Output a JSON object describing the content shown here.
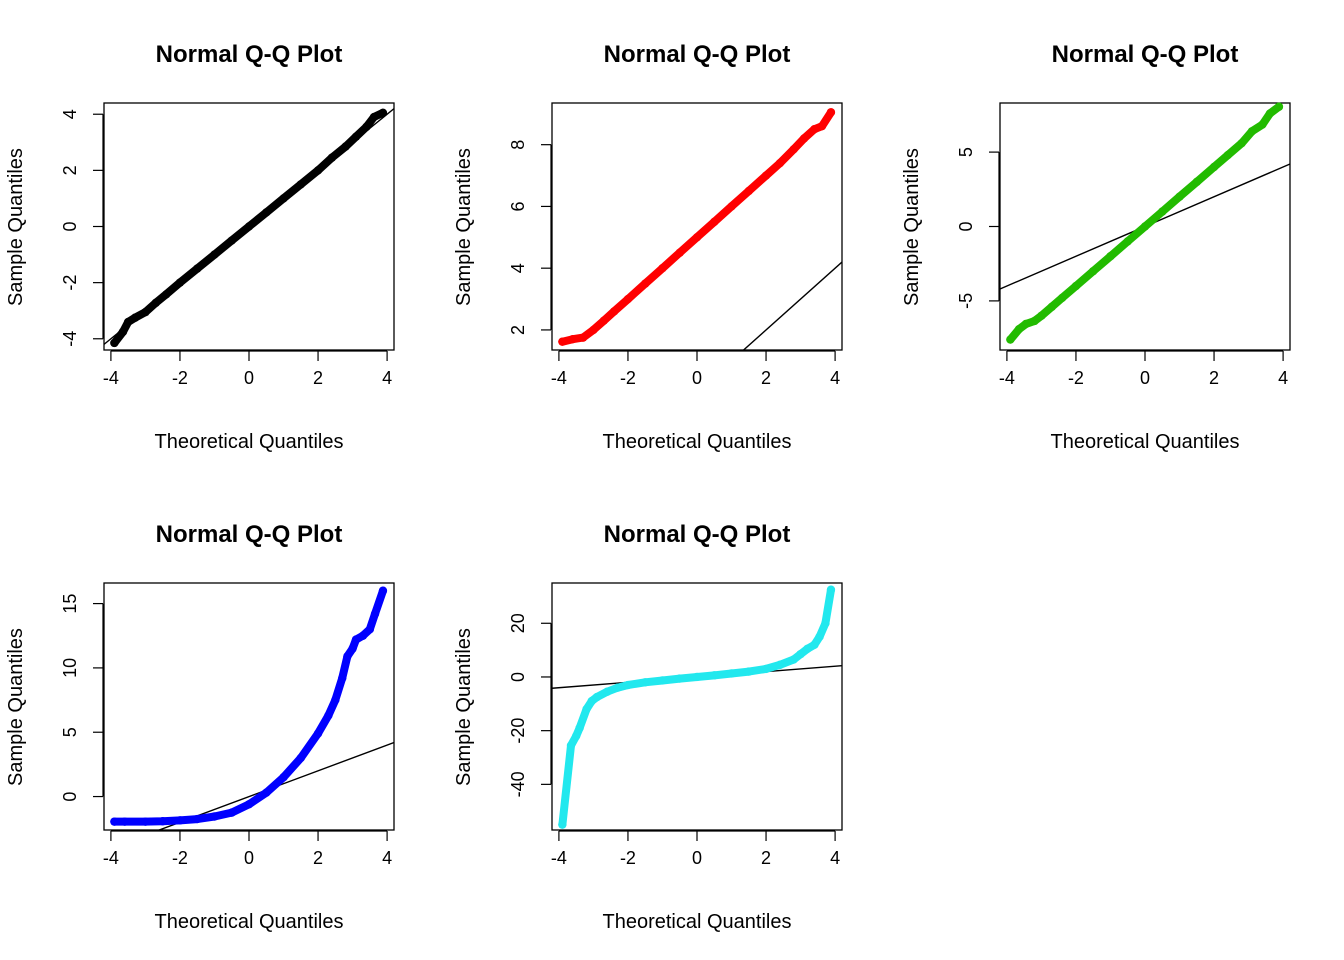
{
  "chart_data": [
    {
      "type": "scatter",
      "title": "Normal Q-Q Plot",
      "xlabel": "Theoretical Quantiles",
      "ylabel": "Sample Quantiles",
      "xlim": [
        -4.2,
        4.2
      ],
      "ylim": [
        -4.4,
        4.4
      ],
      "xticks": [
        "-4",
        "-2",
        "0",
        "2",
        "4"
      ],
      "yticks": [
        "-4",
        "-2",
        "0",
        "2",
        "4"
      ],
      "color": "#000000",
      "distribution": "standard normal",
      "qq_line": {
        "slope": 1.0,
        "intercept": 0.0
      },
      "series": [
        {
          "values": [
            [
              -3.9,
              -4.15
            ],
            [
              -3.65,
              -3.75
            ],
            [
              -3.5,
              -3.4
            ],
            [
              -3.3,
              -3.25
            ],
            [
              -3.0,
              -3.05
            ],
            [
              -2.7,
              -2.72
            ],
            [
              -2.4,
              -2.42
            ],
            [
              -2.0,
              -2.0
            ],
            [
              -1.5,
              -1.5
            ],
            [
              -1.0,
              -1.0
            ],
            [
              -0.5,
              -0.5
            ],
            [
              0.0,
              0.0
            ],
            [
              0.5,
              0.5
            ],
            [
              1.0,
              1.0
            ],
            [
              1.5,
              1.5
            ],
            [
              2.0,
              2.0
            ],
            [
              2.4,
              2.45
            ],
            [
              2.8,
              2.85
            ],
            [
              3.1,
              3.2
            ],
            [
              3.4,
              3.55
            ],
            [
              3.62,
              3.9
            ],
            [
              3.88,
              4.05
            ]
          ]
        }
      ]
    },
    {
      "type": "scatter",
      "title": "Normal Q-Q Plot",
      "xlabel": "Theoretical Quantiles",
      "ylabel": "Sample Quantiles",
      "xlim": [
        -4.2,
        4.2
      ],
      "ylim": [
        1.35,
        9.35
      ],
      "xticks": [
        "-4",
        "-2",
        "0",
        "2",
        "4"
      ],
      "yticks": [
        "2",
        "4",
        "6",
        "8"
      ],
      "color": "#ff0000",
      "distribution": "normal, mean 5",
      "qq_line": {
        "slope": 1.0,
        "intercept": 0.0
      },
      "series": [
        {
          "values": [
            [
              -3.9,
              1.62
            ],
            [
              -3.6,
              1.7
            ],
            [
              -3.3,
              1.75
            ],
            [
              -3.0,
              2.0
            ],
            [
              -2.7,
              2.3
            ],
            [
              -2.4,
              2.6
            ],
            [
              -2.0,
              3.0
            ],
            [
              -1.5,
              3.5
            ],
            [
              -1.0,
              4.0
            ],
            [
              -0.5,
              4.5
            ],
            [
              0.0,
              5.0
            ],
            [
              0.5,
              5.5
            ],
            [
              1.0,
              6.0
            ],
            [
              1.5,
              6.5
            ],
            [
              2.0,
              7.0
            ],
            [
              2.4,
              7.4
            ],
            [
              2.8,
              7.85
            ],
            [
              3.1,
              8.2
            ],
            [
              3.4,
              8.5
            ],
            [
              3.62,
              8.6
            ],
            [
              3.88,
              9.05
            ]
          ]
        }
      ]
    },
    {
      "type": "scatter",
      "title": "Normal Q-Q Plot",
      "xlabel": "Theoretical Quantiles",
      "ylabel": "Sample Quantiles",
      "xlim": [
        -4.2,
        4.2
      ],
      "ylim": [
        -8.3,
        8.3
      ],
      "xticks": [
        "-4",
        "-2",
        "0",
        "2",
        "4"
      ],
      "yticks": [
        "-5",
        "0",
        "5"
      ],
      "color": "#22bb00",
      "distribution": "normal, sd 2",
      "qq_line": {
        "slope": 1.0,
        "intercept": 0.0
      },
      "series": [
        {
          "values": [
            [
              -3.9,
              -7.6
            ],
            [
              -3.65,
              -6.9
            ],
            [
              -3.45,
              -6.55
            ],
            [
              -3.2,
              -6.35
            ],
            [
              -3.0,
              -6.0
            ],
            [
              -2.7,
              -5.4
            ],
            [
              -2.4,
              -4.8
            ],
            [
              -2.0,
              -4.0
            ],
            [
              -1.5,
              -3.0
            ],
            [
              -1.0,
              -2.0
            ],
            [
              -0.5,
              -1.0
            ],
            [
              0.0,
              0.0
            ],
            [
              0.5,
              1.0
            ],
            [
              1.0,
              2.0
            ],
            [
              1.5,
              3.0
            ],
            [
              2.0,
              4.0
            ],
            [
              2.4,
              4.8
            ],
            [
              2.8,
              5.6
            ],
            [
              3.1,
              6.4
            ],
            [
              3.4,
              6.85
            ],
            [
              3.62,
              7.6
            ],
            [
              3.88,
              8.05
            ]
          ]
        }
      ]
    },
    {
      "type": "scatter",
      "title": "Normal Q-Q Plot",
      "xlabel": "Theoretical Quantiles",
      "ylabel": "Sample Quantiles",
      "xlim": [
        -4.2,
        4.2
      ],
      "ylim": [
        -2.6,
        16.6
      ],
      "xticks": [
        "-4",
        "-2",
        "0",
        "2",
        "4"
      ],
      "yticks": [
        "0",
        "5",
        "10",
        "15"
      ],
      "color": "#0000ff",
      "distribution": "right-skewed",
      "qq_line": {
        "slope": 1.0,
        "intercept": 0.0
      },
      "series": [
        {
          "values": [
            [
              -3.9,
              -1.95
            ],
            [
              -3.6,
              -1.95
            ],
            [
              -3.0,
              -1.95
            ],
            [
              -2.5,
              -1.92
            ],
            [
              -2.0,
              -1.85
            ],
            [
              -1.5,
              -1.75
            ],
            [
              -1.0,
              -1.55
            ],
            [
              -0.5,
              -1.25
            ],
            [
              0.0,
              -0.6
            ],
            [
              0.5,
              0.3
            ],
            [
              1.0,
              1.5
            ],
            [
              1.5,
              3.0
            ],
            [
              2.0,
              4.9
            ],
            [
              2.3,
              6.3
            ],
            [
              2.5,
              7.5
            ],
            [
              2.7,
              9.2
            ],
            [
              2.85,
              10.9
            ],
            [
              3.0,
              11.5
            ],
            [
              3.1,
              12.2
            ],
            [
              3.3,
              12.5
            ],
            [
              3.5,
              13.0
            ],
            [
              3.65,
              14.2
            ],
            [
              3.88,
              16.0
            ]
          ]
        }
      ]
    },
    {
      "type": "scatter",
      "title": "Normal Q-Q Plot",
      "xlabel": "Theoretical Quantiles",
      "ylabel": "Sample Quantiles",
      "xlim": [
        -4.2,
        4.2
      ],
      "ylim": [
        -57,
        35
      ],
      "xticks": [
        "-4",
        "-2",
        "0",
        "2",
        "4"
      ],
      "yticks": [
        "-40",
        "-20",
        "0",
        "20"
      ],
      "color": "#22e8ee",
      "distribution": "heavy-tailed",
      "qq_line": {
        "slope": 1.0,
        "intercept": 0.0
      },
      "series": [
        {
          "values": [
            [
              -3.9,
              -55.0
            ],
            [
              -3.65,
              -25.5
            ],
            [
              -3.5,
              -22.0
            ],
            [
              -3.4,
              -19.0
            ],
            [
              -3.2,
              -12.0
            ],
            [
              -3.05,
              -9.0
            ],
            [
              -2.9,
              -7.5
            ],
            [
              -2.6,
              -5.5
            ],
            [
              -2.3,
              -4.0
            ],
            [
              -2.0,
              -3.0
            ],
            [
              -1.5,
              -2.0
            ],
            [
              -1.0,
              -1.3
            ],
            [
              -0.5,
              -0.6
            ],
            [
              0.0,
              0.0
            ],
            [
              0.5,
              0.6
            ],
            [
              1.0,
              1.3
            ],
            [
              1.5,
              2.0
            ],
            [
              2.0,
              3.0
            ],
            [
              2.4,
              4.5
            ],
            [
              2.8,
              6.5
            ],
            [
              3.0,
              8.5
            ],
            [
              3.2,
              10.5
            ],
            [
              3.4,
              12.0
            ],
            [
              3.55,
              15.0
            ],
            [
              3.72,
              20.0
            ],
            [
              3.88,
              32.5
            ]
          ]
        }
      ]
    }
  ]
}
